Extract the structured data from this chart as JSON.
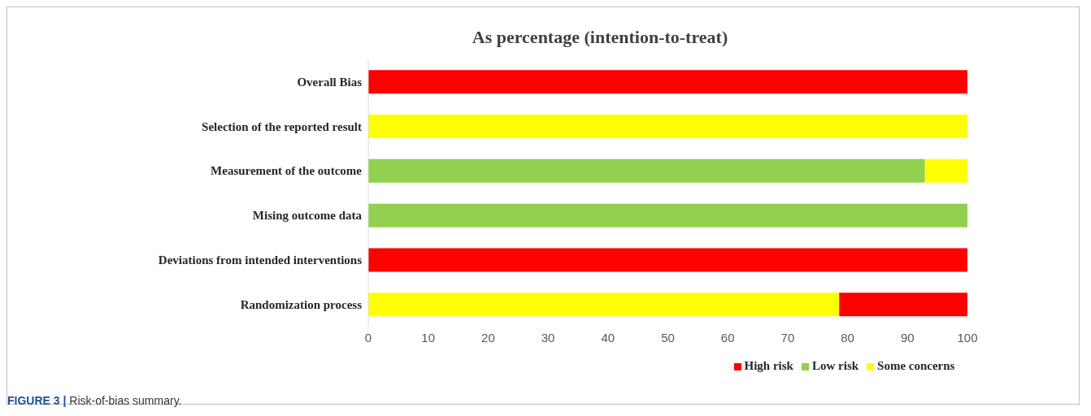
{
  "chart_data": {
    "type": "bar",
    "orientation": "horizontal",
    "stacked": true,
    "title": "As percentage (intention-to-treat)",
    "categories": [
      "Overall Bias",
      "Selection of the reported result",
      "Measurement of the outcome",
      "Mising outcome data",
      "Deviations from intended interventions",
      "Randomization process"
    ],
    "series": [
      {
        "name": "Low risk",
        "color": "#92d050",
        "values": [
          0,
          0,
          92.9,
          100,
          0,
          0
        ]
      },
      {
        "name": "Some concerns",
        "color": "#ffff00",
        "values": [
          0,
          100,
          7.1,
          0,
          0,
          78.6
        ]
      },
      {
        "name": "High risk",
        "color": "#ff0000",
        "values": [
          100,
          0,
          0,
          0,
          100,
          21.4
        ]
      }
    ],
    "xlim": [
      0,
      100
    ],
    "xticks": [
      0,
      10,
      20,
      30,
      40,
      50,
      60,
      70,
      80,
      90,
      100
    ],
    "legend": "bottom",
    "annotations": [
      "FIGURE 3 | Risk-of-bias summary."
    ]
  }
}
